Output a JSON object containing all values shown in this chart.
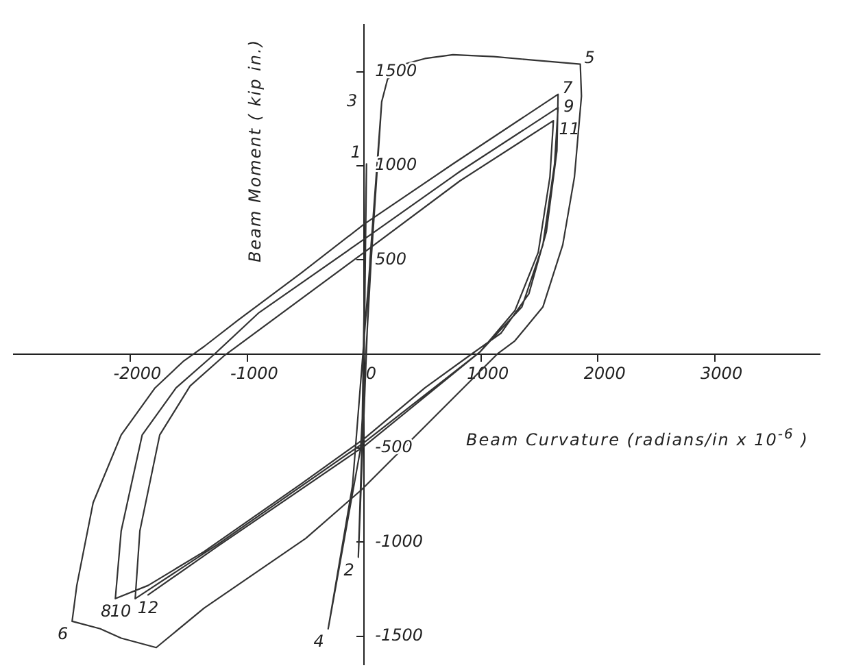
{
  "chart_data": {
    "type": "line",
    "xlabel": "Beam Curvature (radians/in x 10$^{-6}$ )",
    "ylabel": "Beam Moment ( kip in.)",
    "xlim": [
      -3000,
      3900
    ],
    "ylim": [
      -1650,
      1750
    ],
    "xticks": [
      -2000,
      -1000,
      0,
      1000,
      2000,
      3000
    ],
    "yticks": [
      -1500,
      -1000,
      -500,
      500,
      1000,
      1500
    ],
    "grid": false,
    "legend": false,
    "marker": "none",
    "line_style": "solid",
    "series": [
      {
        "color": "#333333",
        "x": [
          0,
          10,
          20,
          -20,
          -50,
          50,
          150,
          60,
          -30,
          -308,
          -100,
          40,
          150,
          200,
          340,
          520,
          760,
          1110,
          1850,
          1860,
          1800,
          1700,
          1530,
          1290,
          1140,
          -20,
          -500,
          -1370,
          -1780,
          -2080,
          -2260,
          -2500,
          -2460,
          -2320,
          -2080,
          -1790,
          -1550,
          -1370,
          -1080,
          -540,
          0,
          760,
          1660,
          1650,
          1560,
          1410,
          1170,
          920,
          520,
          0,
          -540,
          -1370,
          -1850,
          -2130,
          -2080,
          -1900,
          -1610,
          -1280,
          -900,
          0,
          820,
          1660,
          1630,
          1530,
          1350,
          990,
          0,
          -1250,
          -1960,
          -1920,
          -1750,
          -1490,
          -1200,
          0,
          820,
          1620,
          1590,
          1490,
          1290,
          990,
          0,
          -1250,
          -1850
        ],
        "values": [
          0,
          500,
          1010,
          -500,
          -1080,
          500,
          1340,
          500,
          -500,
          -1460,
          -700,
          400,
          1340,
          1460,
          1540,
          1570,
          1590,
          1580,
          1540,
          1370,
          940,
          580,
          250,
          70,
          0,
          -720,
          -980,
          -1350,
          -1560,
          -1510,
          -1460,
          -1420,
          -1230,
          -790,
          -430,
          -180,
          -40,
          40,
          180,
          430,
          690,
          1010,
          1380,
          1080,
          650,
          320,
          110,
          0,
          -180,
          -450,
          -690,
          -1050,
          -1230,
          -1300,
          -940,
          -430,
          -180,
          0,
          220,
          610,
          970,
          1310,
          1010,
          580,
          250,
          10,
          -470,
          -1010,
          -1300,
          -940,
          -430,
          -170,
          -10,
          540,
          920,
          1240,
          940,
          540,
          230,
          10,
          -490,
          -1020,
          -1280
        ]
      }
    ],
    "annotations": [
      {
        "text": "1",
        "x": 20,
        "y": 1010
      },
      {
        "text": "2",
        "x": -50,
        "y": -1080
      },
      {
        "text": "3",
        "x": 150,
        "y": 1340
      },
      {
        "text": "4",
        "x": -308,
        "y": -1460
      },
      {
        "text": "5",
        "x": 1850,
        "y": 1540
      },
      {
        "text": "6",
        "x": -2500,
        "y": -1420
      },
      {
        "text": "7",
        "x": 1660,
        "y": 1380
      },
      {
        "text": "8",
        "x": -2130,
        "y": -1300
      },
      {
        "text": "9",
        "x": 1660,
        "y": 1310
      },
      {
        "text": "10",
        "x": -1960,
        "y": -1300
      },
      {
        "text": "11",
        "x": 1620,
        "y": 1240
      },
      {
        "text": "12",
        "x": -1850,
        "y": -1280
      }
    ]
  }
}
